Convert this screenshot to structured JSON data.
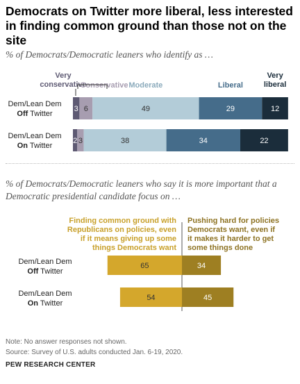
{
  "title": "Democrats on Twitter more liberal, less interested in finding common ground than those not on the site",
  "chart_data": [
    {
      "type": "bar",
      "stacked": true,
      "orientation": "horizontal",
      "subtitle": "% of Democrats/Democratic leaners who identify as …",
      "categories": [
        {
          "line1": "Dem/Lean Dem",
          "bold": "Off",
          "rest": " Twitter"
        },
        {
          "line1": "Dem/Lean Dem",
          "bold": "On",
          "rest": " Twitter"
        }
      ],
      "series": [
        {
          "name": "Very conservative",
          "name_lines": [
            "Very",
            "conservative"
          ],
          "color": "#5e5a73",
          "label_color": "#5e5a73",
          "text_color": "#ffffff",
          "values": [
            3,
            2
          ]
        },
        {
          "name": "Conservative",
          "name_lines": [
            "Conservative"
          ],
          "color": "#a79db0",
          "label_color": "#a79db0",
          "text_color": "#333333",
          "values": [
            6,
            3
          ]
        },
        {
          "name": "Moderate",
          "name_lines": [
            "Moderate"
          ],
          "color": "#b3ccd8",
          "label_color": "#8aaabb",
          "text_color": "#333333",
          "values": [
            49,
            38
          ]
        },
        {
          "name": "Liberal",
          "name_lines": [
            "Liberal"
          ],
          "color": "#456c8a",
          "label_color": "#456c8a",
          "text_color": "#ffffff",
          "values": [
            29,
            34
          ]
        },
        {
          "name": "Very liberal",
          "name_lines": [
            "Very",
            "liberal"
          ],
          "color": "#1b2d3b",
          "label_color": "#1b2d3b",
          "text_color": "#ffffff",
          "values": [
            12,
            22
          ]
        }
      ]
    },
    {
      "type": "bar",
      "diverging": true,
      "orientation": "horizontal",
      "subtitle": "% of Democrats/Democratic leaners who say it is more important that a Democratic presidential candidate focus on …",
      "categories": [
        {
          "line1": "Dem/Lean Dem",
          "bold": "Off",
          "rest": " Twitter"
        },
        {
          "line1": "Dem/Lean Dem",
          "bold": "On",
          "rest": " Twitter"
        }
      ],
      "series": [
        {
          "name": "Finding common ground with Republicans on policies, even if it means giving up some things Democrats want",
          "name_lines": [
            "Finding common ground with",
            "Republicans on policies, even",
            "if it means giving up some",
            "things Democrats want"
          ],
          "color": "#d4a72c",
          "label_color": "#c8a02a",
          "text_color": "#333333",
          "values": [
            65,
            54
          ]
        },
        {
          "name": "Pushing hard for policies Democrats want, even if it makes it harder to get some things done",
          "name_lines": [
            "Pushing hard for policies",
            "Democrats want, even if",
            "it makes it harder to get",
            "some things done"
          ],
          "color": "#9e7f22",
          "label_color": "#8d7222",
          "text_color": "#ffffff",
          "values": [
            34,
            45
          ]
        }
      ]
    }
  ],
  "footer": {
    "note": "Note: No answer responses not shown.",
    "source": "Source: Survey of U.S. adults conducted Jan. 6-19, 2020.",
    "brand": "PEW RESEARCH CENTER"
  }
}
